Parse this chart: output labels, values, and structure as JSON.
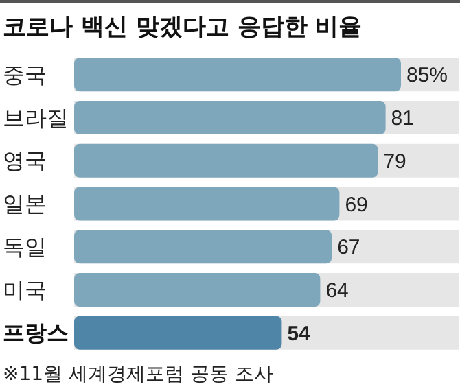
{
  "chart_data": {
    "type": "bar",
    "orientation": "horizontal",
    "title": "코로나 백신 맞겠다고 응답한 비율",
    "categories": [
      "중국",
      "브라질",
      "영국",
      "일본",
      "독일",
      "미국",
      "프랑스"
    ],
    "values": [
      85,
      81,
      79,
      69,
      67,
      64,
      54
    ],
    "value_labels": [
      "85%",
      "81",
      "79",
      "69",
      "67",
      "64",
      "54"
    ],
    "colors": [
      "#7ea7bc",
      "#7ea7bc",
      "#7ea7bc",
      "#7ea7bc",
      "#7ea7bc",
      "#7ea7bc",
      "#4f86a8"
    ],
    "xlim": [
      0,
      100
    ],
    "tick_labels": "y",
    "annotations": [
      "※11월 세계경제포럼 공동 조사"
    ]
  }
}
